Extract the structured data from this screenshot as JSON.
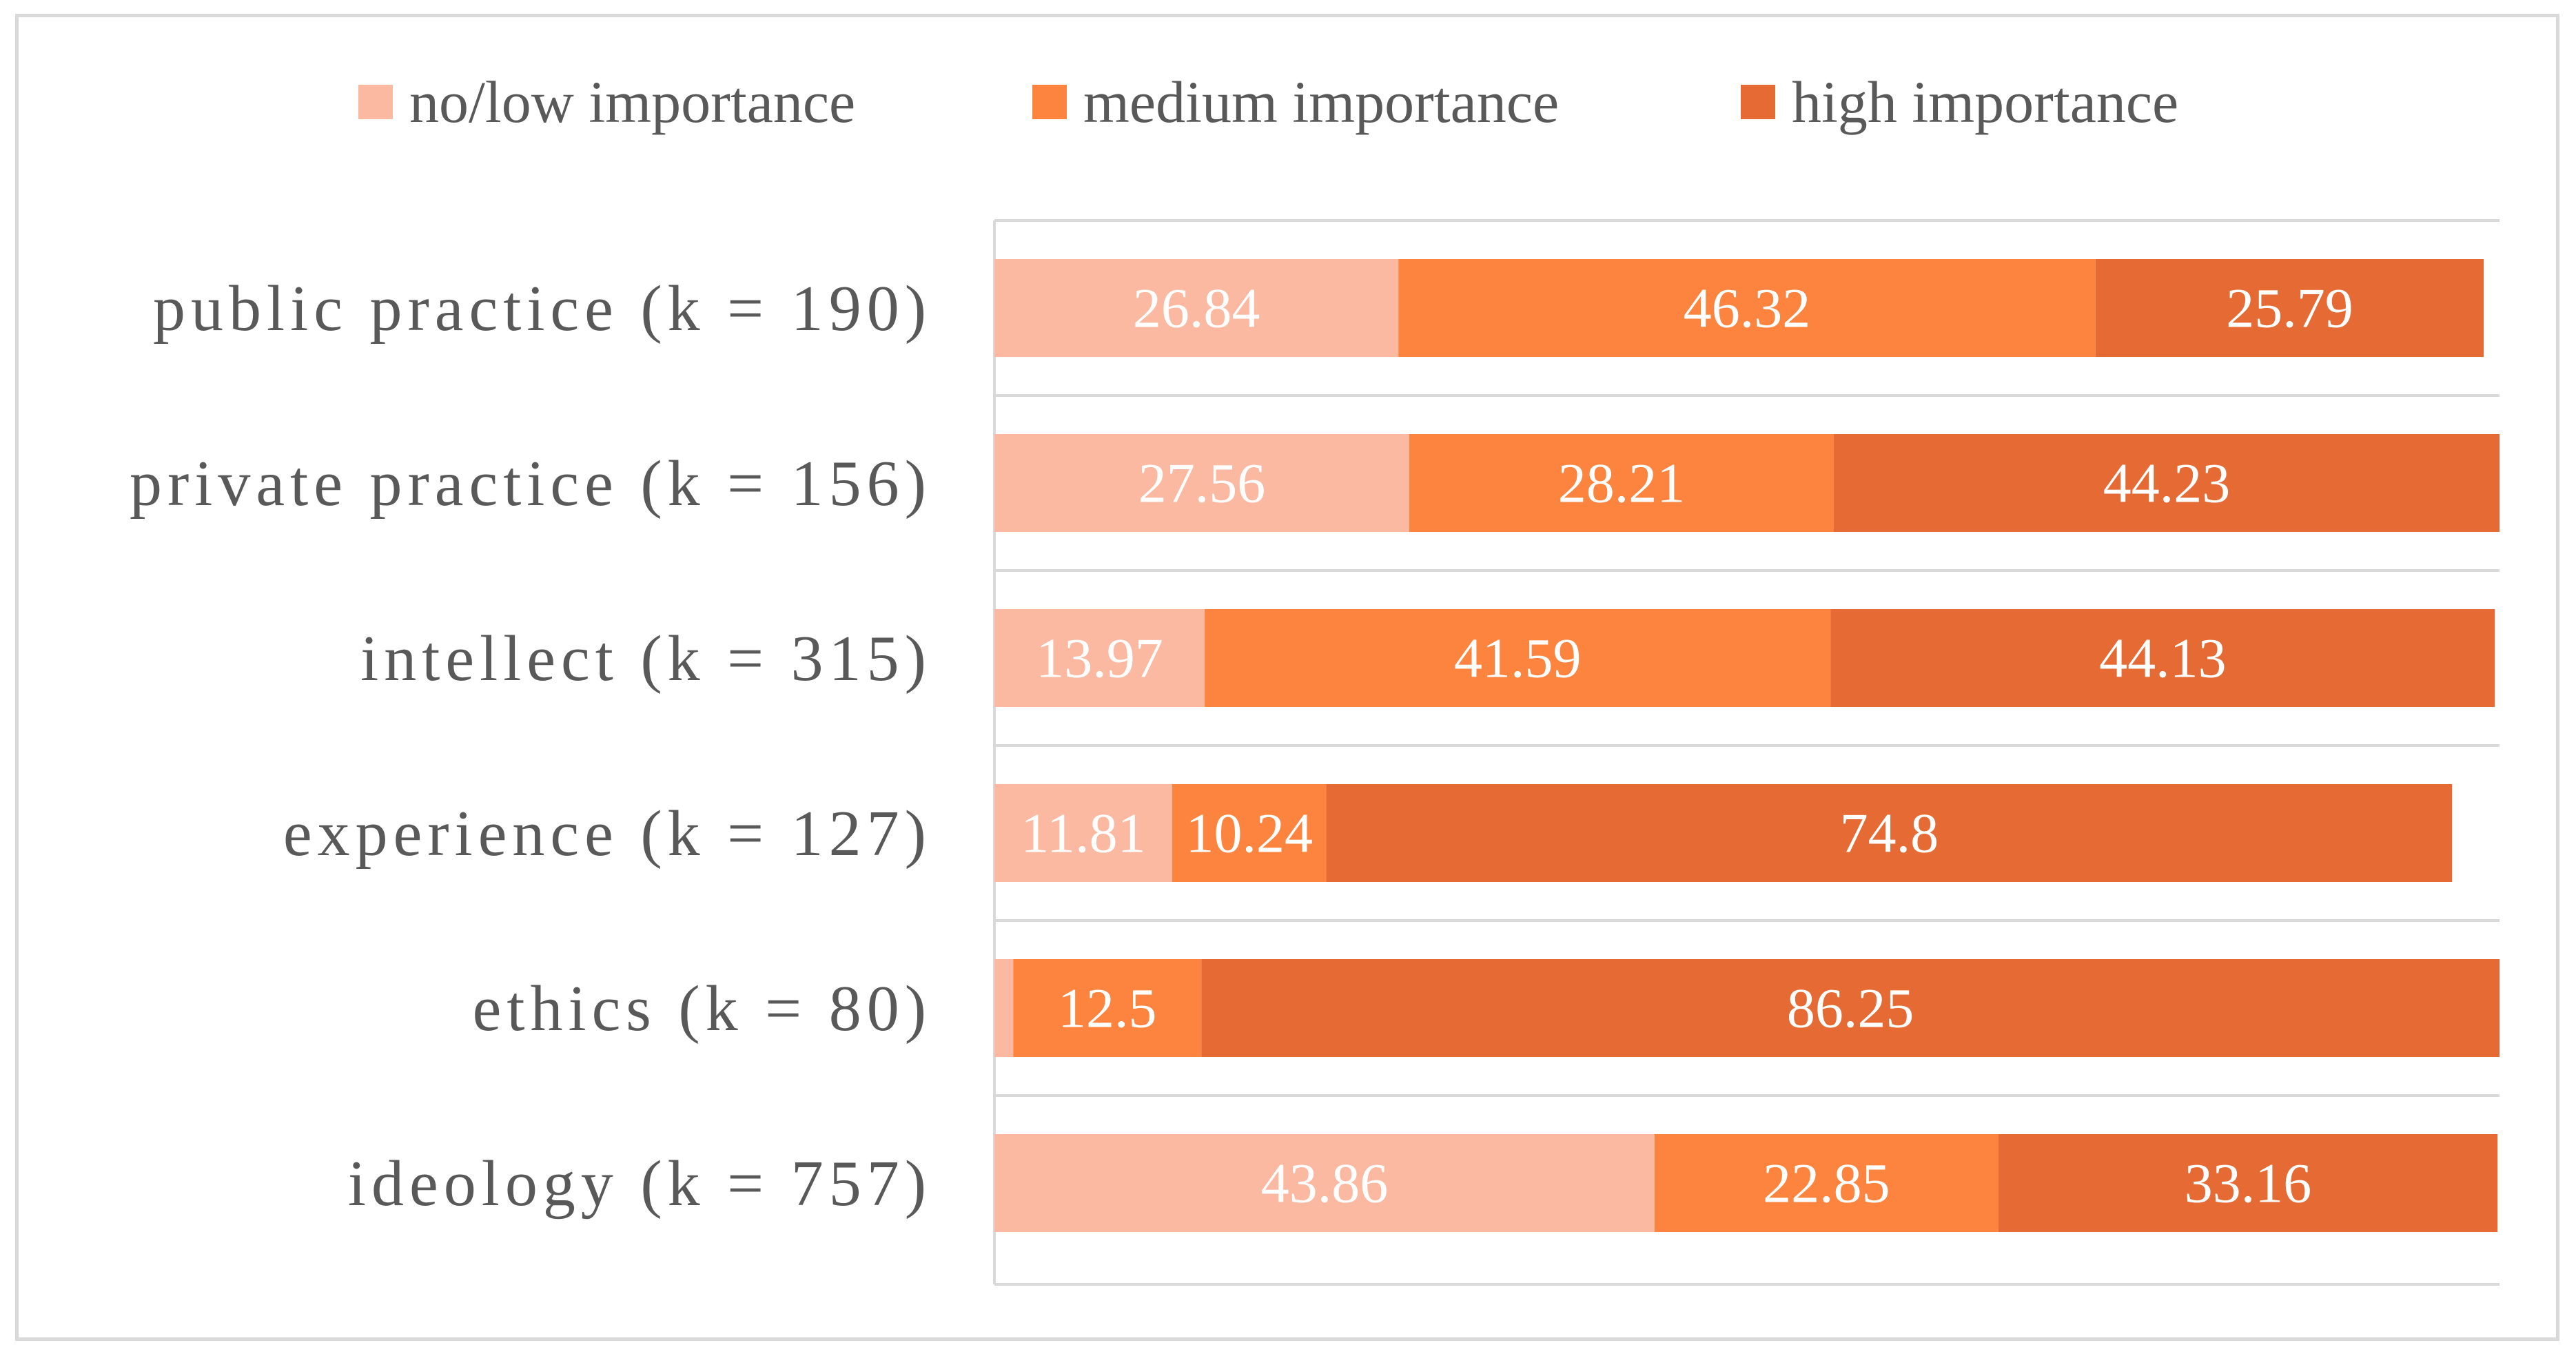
{
  "chart_data": {
    "type": "bar",
    "orientation": "horizontal",
    "stacked": true,
    "title": "",
    "xlabel": "",
    "ylabel": "",
    "xlim": [
      0,
      100
    ],
    "grid": "horizontal separators between categories",
    "legend_position": "top",
    "categories": [
      "public practice (k = 190)",
      "private practice (k = 156)",
      "intellect (k = 315)",
      "experience (k = 127)",
      "ethics (k = 80)",
      "ideology (k = 757)"
    ],
    "series": [
      {
        "name": "no/low importance",
        "color": "#fbb9a1",
        "values": [
          26.84,
          27.56,
          13.97,
          11.81,
          1.25,
          43.86
        ],
        "labels": [
          "26.84",
          "27.56",
          "13.97",
          "11.81",
          "",
          "43.86"
        ]
      },
      {
        "name": "medium importance",
        "color": "#fd843e",
        "values": [
          46.32,
          28.21,
          41.59,
          10.24,
          12.5,
          22.85
        ],
        "labels": [
          "46.32",
          "28.21",
          "41.59",
          "10.24",
          "12.5",
          "22.85"
        ]
      },
      {
        "name": "high importance",
        "color": "#e56a33",
        "values": [
          25.79,
          44.23,
          44.13,
          74.8,
          86.25,
          33.16
        ],
        "labels": [
          "25.79",
          "44.23",
          "44.13",
          "74.8",
          "86.25",
          "33.16"
        ]
      }
    ]
  }
}
